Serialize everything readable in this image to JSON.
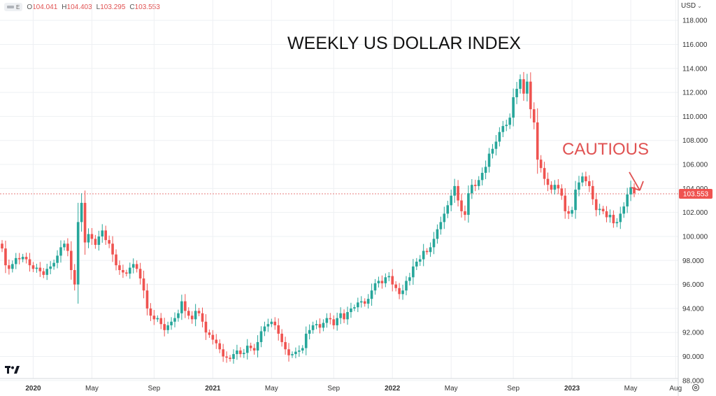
{
  "header": {
    "symbol_pill": "E",
    "ohlc": [
      {
        "k": "O",
        "v": "104.041"
      },
      {
        "k": "H",
        "v": "104.403"
      },
      {
        "k": "L",
        "v": "103.295"
      },
      {
        "k": "C",
        "v": "103.553"
      }
    ]
  },
  "currency": "USD",
  "last_price_label": "103.553",
  "colors": {
    "up": "#26a69a",
    "down": "#ef5350",
    "annotation": "#e05252",
    "grid": "#eef0f3"
  },
  "chart_data": {
    "type": "candlestick",
    "title": "WEEKLY US DOLLAR INDEX",
    "annotation": "CAUTIOUS",
    "y_ticks": [
      "88.000",
      "90.000",
      "92.000",
      "94.000",
      "96.000",
      "98.000",
      "100.000",
      "102.000",
      "104.000",
      "106.000",
      "108.000",
      "110.000",
      "112.000",
      "114.000",
      "116.000",
      "118.000"
    ],
    "ylim": [
      87,
      119
    ],
    "x_ticks": [
      {
        "label": "2020",
        "bold": true,
        "week": 9
      },
      {
        "label": "May",
        "bold": false,
        "week": 26
      },
      {
        "label": "Sep",
        "bold": false,
        "week": 44
      },
      {
        "label": "2021",
        "bold": true,
        "week": 61
      },
      {
        "label": "May",
        "bold": false,
        "week": 78
      },
      {
        "label": "Sep",
        "bold": false,
        "week": 96
      },
      {
        "label": "2022",
        "bold": true,
        "week": 113
      },
      {
        "label": "May",
        "bold": false,
        "week": 130
      },
      {
        "label": "Sep",
        "bold": false,
        "week": 148
      },
      {
        "label": "2023",
        "bold": true,
        "week": 165
      },
      {
        "label": "May",
        "bold": false,
        "week": 182
      },
      {
        "label": "Aug",
        "bold": false,
        "week": 195
      }
    ],
    "last_price": 103.553,
    "closes": [
      99.0,
      97.6,
      97.3,
      97.7,
      98.2,
      98.1,
      98.3,
      98.1,
      97.6,
      97.3,
      97.4,
      97.1,
      96.8,
      97.3,
      97.5,
      97.8,
      98.4,
      99.1,
      99.4,
      98.8,
      97.2,
      96.0,
      101.2,
      102.8,
      99.5,
      100.2,
      99.8,
      99.3,
      100.0,
      100.5,
      99.7,
      99.4,
      98.5,
      97.6,
      97.2,
      97.0,
      96.9,
      97.4,
      97.7,
      97.3,
      96.5,
      95.5,
      94.0,
      93.4,
      93.1,
      93.2,
      92.7,
      92.2,
      92.6,
      92.9,
      93.2,
      93.6,
      94.6,
      93.8,
      93.4,
      93.1,
      93.8,
      93.6,
      92.9,
      92.0,
      91.8,
      91.4,
      91.1,
      90.6,
      90.0,
      89.9,
      89.8,
      90.2,
      90.5,
      90.2,
      90.3,
      90.9,
      90.7,
      90.5,
      91.2,
      92.1,
      92.5,
      92.7,
      92.9,
      92.6,
      91.9,
      91.2,
      90.6,
      90.1,
      90.2,
      90.4,
      90.5,
      90.7,
      91.9,
      92.2,
      92.6,
      92.7,
      92.4,
      92.8,
      93.2,
      93.1,
      92.6,
      93.2,
      93.6,
      93.1,
      93.7,
      94.0,
      94.1,
      94.5,
      94.6,
      94.4,
      94.8,
      95.5,
      96.1,
      96.3,
      96.1,
      96.6,
      96.7,
      96.0,
      95.7,
      95.2,
      95.5,
      96.3,
      96.6,
      97.5,
      97.9,
      98.1,
      98.8,
      98.7,
      99.1,
      99.8,
      100.6,
      101.2,
      101.9,
      102.6,
      103.4,
      104.2,
      103.0,
      102.1,
      101.8,
      103.6,
      104.3,
      104.2,
      104.7,
      105.3,
      105.8,
      106.9,
      107.3,
      107.9,
      108.7,
      109.2,
      109.3,
      109.9,
      111.6,
      112.3,
      113.1,
      111.9,
      112.9,
      110.6,
      109.5,
      106.4,
      105.7,
      104.8,
      104.3,
      103.9,
      104.3,
      104.0,
      103.4,
      102.1,
      101.9,
      102.2,
      103.9,
      104.5,
      105.0,
      104.6,
      104.2,
      103.1,
      102.2,
      102.3,
      102.1,
      101.6,
      101.8,
      101.1,
      101.2,
      101.9,
      102.5,
      103.5,
      104.1,
      103.6
    ]
  }
}
